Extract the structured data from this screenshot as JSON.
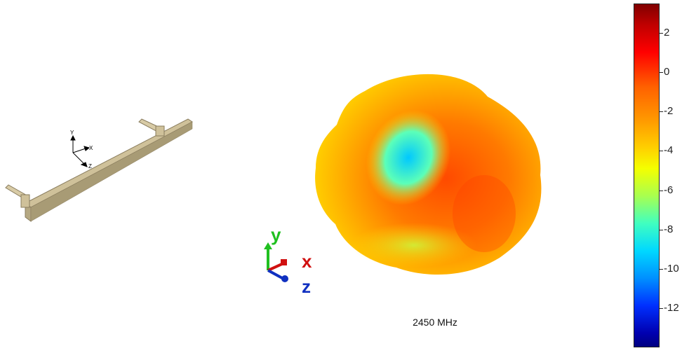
{
  "antenna_axes": {
    "y": "Y",
    "x": "X",
    "z": "Z"
  },
  "pattern_axes": {
    "y": "y",
    "x": "x",
    "z": "z"
  },
  "frequency_label": "2450 MHz",
  "colorbar": {
    "ticks": [
      "2",
      "0",
      "-2",
      "-4",
      "-6",
      "-8",
      "-10",
      "-12"
    ],
    "range": [
      -14,
      3.5
    ],
    "colormap": "jet"
  },
  "colors": {
    "antenna": "#d8cba6",
    "axis_x": "#d01010",
    "axis_y": "#20c020",
    "axis_z": "#1030c0"
  }
}
